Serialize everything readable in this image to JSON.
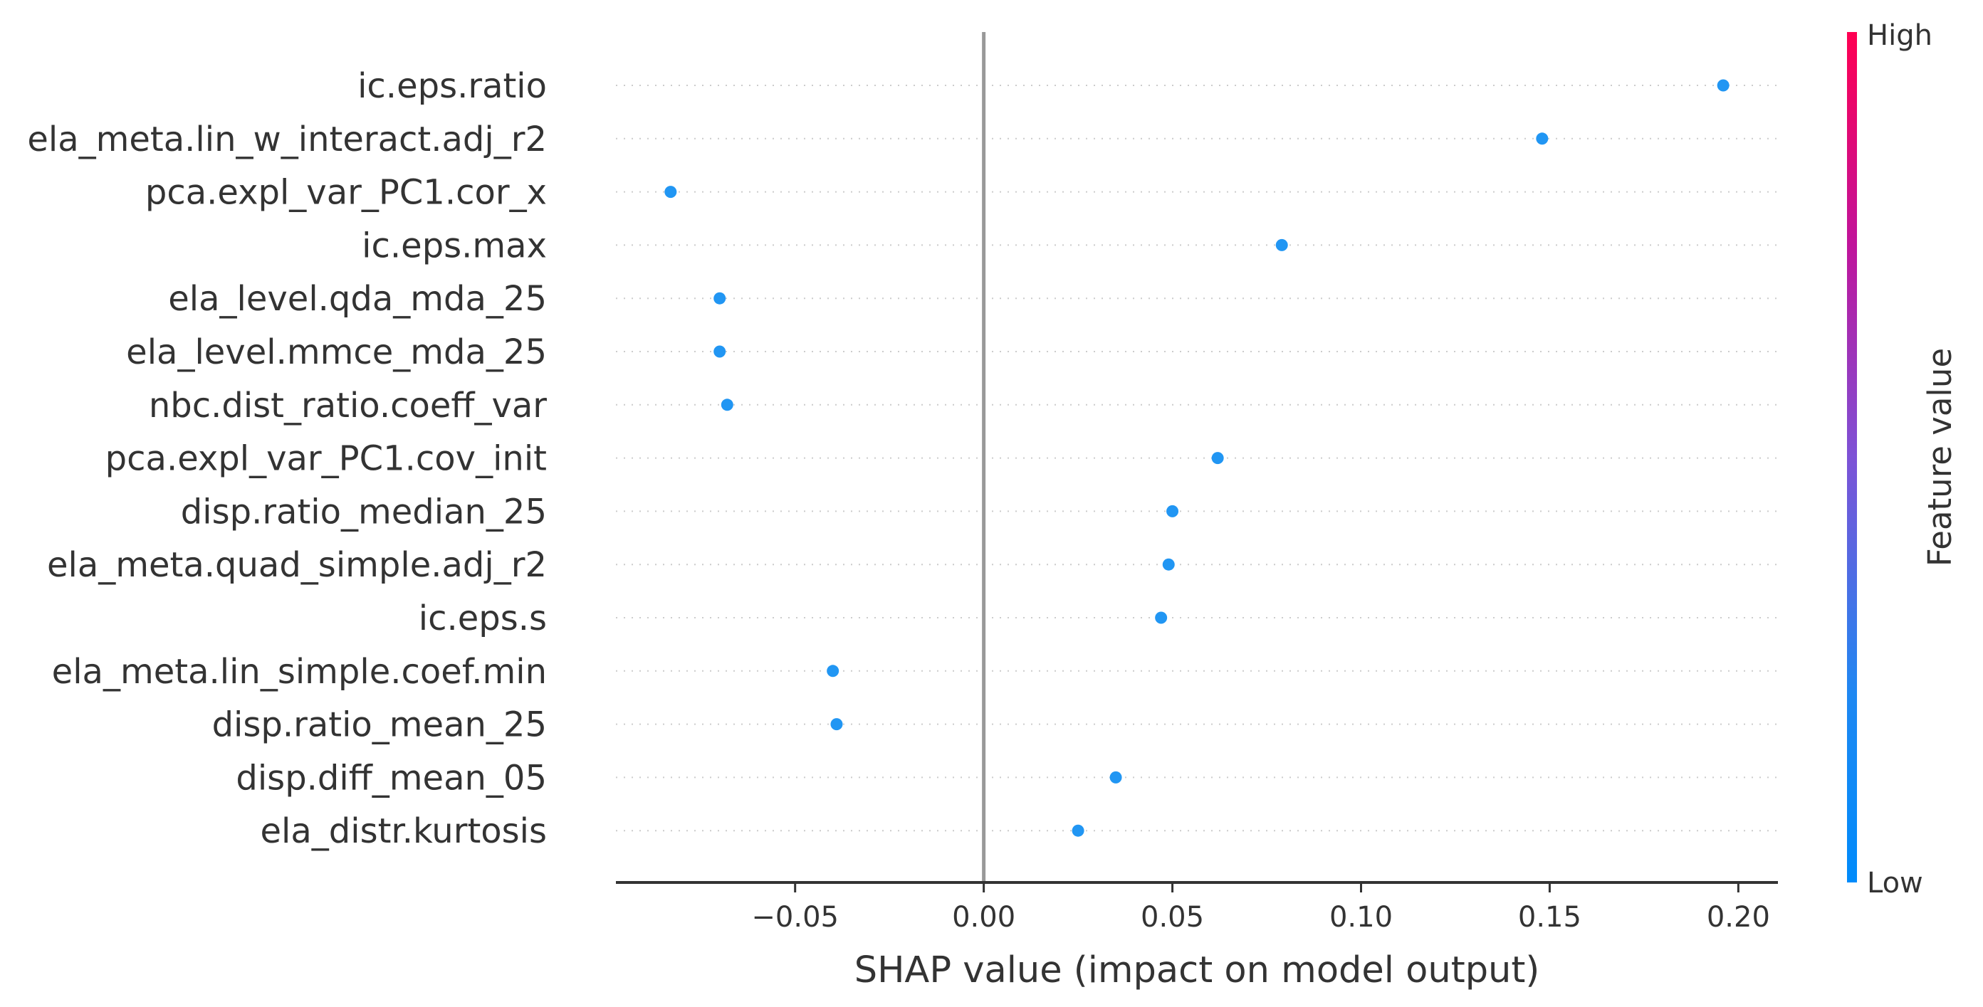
{
  "chart_data": {
    "type": "scatter",
    "subtype": "shap-beeswarm",
    "xlabel": "SHAP value (impact on model output)",
    "xlim": [
      -0.0975,
      0.2105
    ],
    "xticks": [
      -0.05,
      0.0,
      0.05,
      0.1,
      0.15,
      0.2
    ],
    "xtick_labels": [
      "−0.05",
      "0.00",
      "0.05",
      "0.10",
      "0.15",
      "0.20"
    ],
    "zero_line": true,
    "row_gridlines": "dotted",
    "features": [
      "ic.eps.ratio",
      "ela_meta.lin_w_interact.adj_r2",
      "pca.expl_var_PC1.cor_x",
      "ic.eps.max",
      "ela_level.qda_mda_25",
      "ela_level.mmce_mda_25",
      "nbc.dist_ratio.coeff_var",
      "pca.expl_var_PC1.cov_init",
      "disp.ratio_median_25",
      "ela_meta.quad_simple.adj_r2",
      "ic.eps.s",
      "ela_meta.lin_simple.coef.min",
      "disp.ratio_mean_25",
      "disp.diff_mean_05",
      "ela_distr.kurtosis"
    ],
    "values": [
      0.196,
      0.148,
      -0.083,
      0.079,
      -0.07,
      -0.07,
      -0.068,
      0.062,
      0.05,
      0.049,
      0.047,
      -0.04,
      -0.039,
      0.035,
      0.025
    ],
    "point_color": "#2196f3",
    "colorbar": {
      "title": "Feature value",
      "high_label": "High",
      "low_label": "Low",
      "colors_top_to_bottom": [
        "#ff0052",
        "#c0149b",
        "#7d52d6",
        "#1e88f2",
        "#008bfb"
      ]
    }
  }
}
